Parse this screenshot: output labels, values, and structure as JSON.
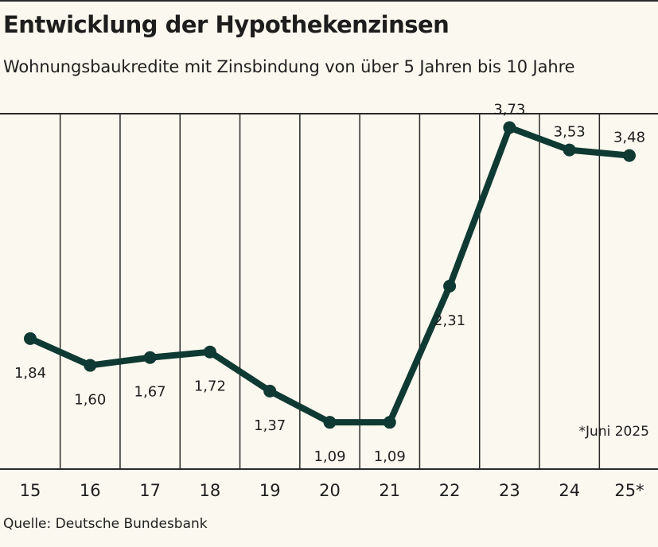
{
  "title": "Entwicklung der Hypothekenzinsen",
  "subtitle": "Wohnungsbaukredite mit Zinsbindung von über 5 Jahren bis 10 Jahre",
  "source": "Quelle: Deutsche Bundesbank",
  "footnote": "*Juni 2025",
  "colors": {
    "line": "#0f3a33",
    "background": "#fbf8ef",
    "grid": "#2a2a2a"
  },
  "chart_data": {
    "type": "line",
    "title": "Entwicklung der Hypothekenzinsen",
    "subtitle": "Wohnungsbaukredite mit Zinsbindung von über 5 Jahren bis 10 Jahre",
    "categories": [
      "15",
      "16",
      "17",
      "18",
      "19",
      "20",
      "21",
      "22",
      "23",
      "24",
      "25*"
    ],
    "series": [
      {
        "values": [
          1.84,
          1.6,
          1.67,
          1.72,
          1.37,
          1.09,
          1.09,
          2.31,
          3.73,
          3.53,
          3.48
        ]
      }
    ],
    "data_labels": [
      "1,84",
      "1,60",
      "1,67",
      "1,72",
      "1,37",
      "1,09",
      "1,09",
      "2,31",
      "3,73",
      "3,53",
      "3,48"
    ],
    "xlabel": "",
    "ylabel": "",
    "ylim": [
      0,
      4.5
    ],
    "grid": "vertical",
    "legend": "none"
  }
}
